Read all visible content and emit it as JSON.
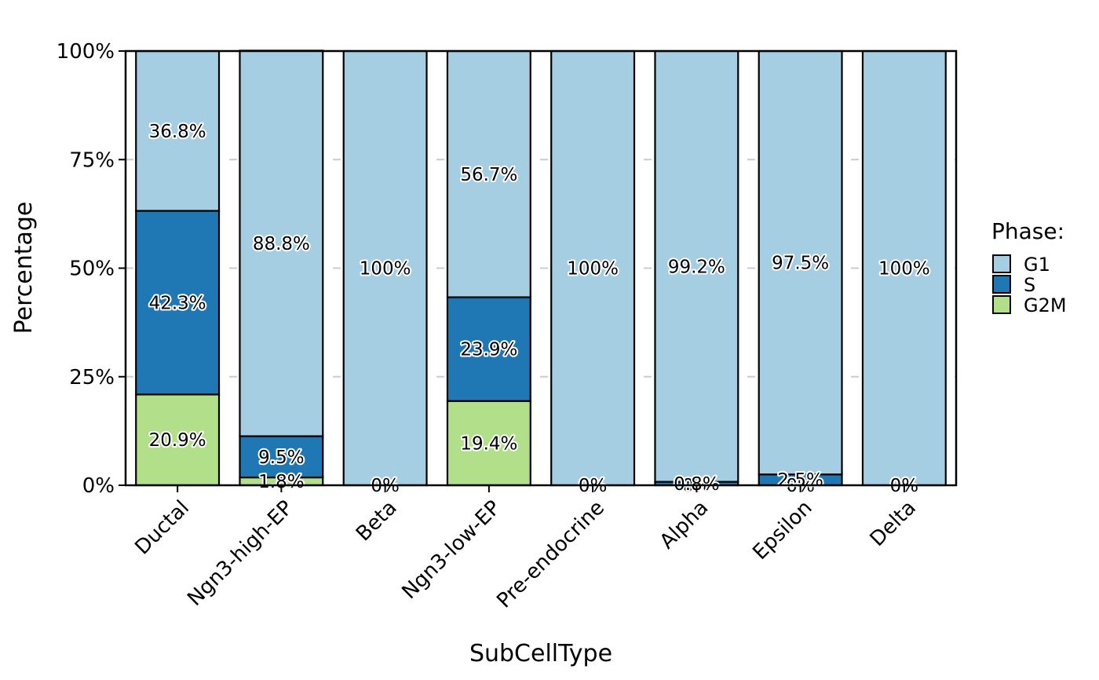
{
  "chart_data": {
    "type": "bar",
    "stacked": true,
    "normalized": true,
    "xlabel": "SubCellType",
    "ylabel": "Percentage",
    "ylim": [
      0,
      1
    ],
    "yticks": [
      {
        "value": 0,
        "label": "0%"
      },
      {
        "value": 0.25,
        "label": "25%"
      },
      {
        "value": 0.5,
        "label": "50%"
      },
      {
        "value": 0.75,
        "label": "75%"
      },
      {
        "value": 1,
        "label": "100%"
      }
    ],
    "categories": [
      "Ductal",
      "Ngn3-high-EP",
      "Beta",
      "Ngn3-low-EP",
      "Pre-endocrine",
      "Alpha",
      "Epsilon",
      "Delta"
    ],
    "stack_order": [
      "G2M",
      "S",
      "G1"
    ],
    "series": [
      {
        "name": "G1",
        "color": "#A6CEE3",
        "values": [
          0.368,
          0.888,
          1.0,
          0.567,
          1.0,
          0.992,
          0.975,
          1.0
        ],
        "labels": [
          "36.8%",
          "88.8%",
          "100%",
          "56.7%",
          "100%",
          "99.2%",
          "97.5%",
          "100%"
        ]
      },
      {
        "name": "S",
        "color": "#1F78B4",
        "values": [
          0.423,
          0.095,
          0.0,
          0.239,
          0.0,
          0.008,
          0.025,
          0.0
        ],
        "labels": [
          "42.3%",
          "9.5%",
          "0%",
          "23.9%",
          "0%",
          "0.8%",
          "2.5%",
          "0%"
        ]
      },
      {
        "name": "G2M",
        "color": "#B2DF8A",
        "values": [
          0.209,
          0.018,
          0.0,
          0.194,
          0.0,
          0.0,
          0.0,
          0.0
        ],
        "labels": [
          "20.9%",
          "1.8%",
          "0%",
          "19.4%",
          "0%",
          "0%",
          "0%",
          "0%"
        ]
      }
    ],
    "legend": {
      "title": "Phase:",
      "position": "right",
      "items": [
        "G1",
        "S",
        "G2M"
      ]
    },
    "grid": {
      "major_y": true,
      "dashed": true
    }
  }
}
